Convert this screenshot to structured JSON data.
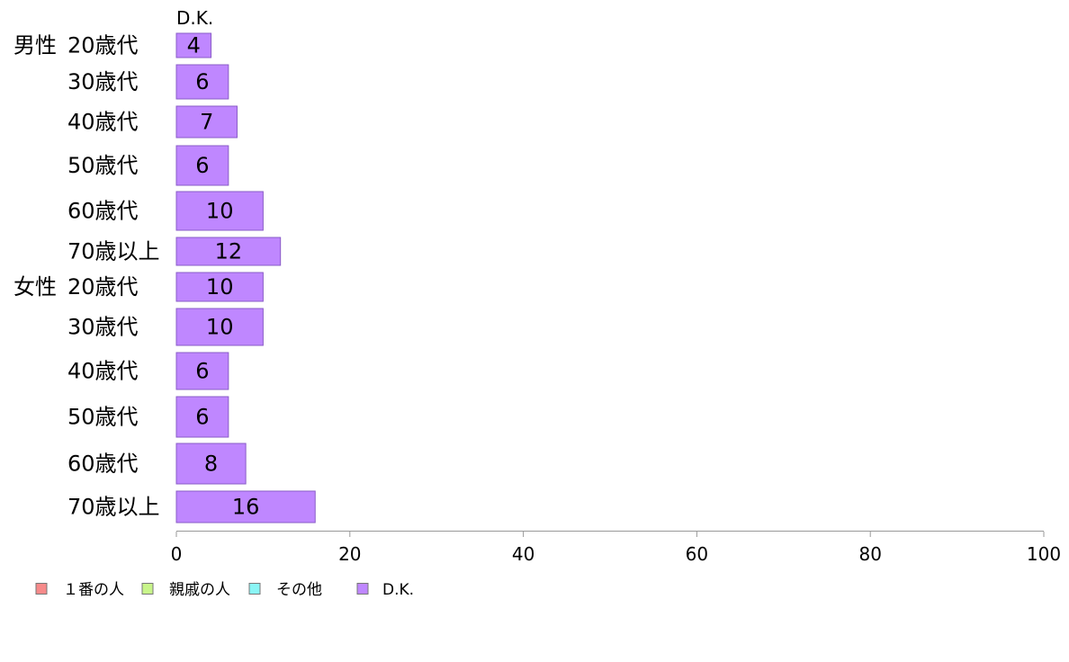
{
  "chart_data": {
    "type": "bar",
    "orientation": "horizontal",
    "series_title": "D.K.",
    "groups": [
      {
        "label": "男性",
        "start": 0
      },
      {
        "label": "女性",
        "start": 6
      }
    ],
    "categories": [
      "20歳代",
      "30歳代",
      "40歳代",
      "50歳代",
      "60歳代",
      "70歳以上",
      "20歳代",
      "30歳代",
      "40歳代",
      "50歳代",
      "60歳代",
      "70歳以上"
    ],
    "series": [
      {
        "name": "D.K.",
        "color": "#bf87ff",
        "values": [
          4,
          6,
          7,
          6,
          10,
          12,
          10,
          10,
          6,
          6,
          8,
          16
        ]
      }
    ],
    "xlim": [
      0,
      100
    ],
    "xticks": [
      0,
      20,
      40,
      60,
      80,
      100
    ],
    "legend": {
      "position": "bottom-left",
      "entries": [
        {
          "label": "１番の人",
          "color": "#f78a8a"
        },
        {
          "label": "親戚の人",
          "color": "#c8f58a"
        },
        {
          "label": "その他",
          "color": "#8af5f5"
        },
        {
          "label": "D.K.",
          "color": "#bf87ff"
        }
      ]
    },
    "grid": false
  }
}
